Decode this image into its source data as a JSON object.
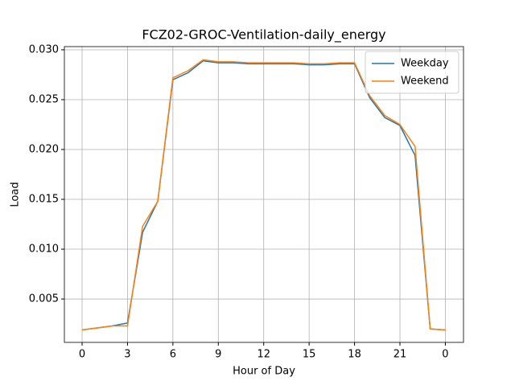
{
  "chart_data": {
    "type": "line",
    "title": "FCZ02-GROC-Ventilation-daily_energy",
    "x_label": "Hour of Day",
    "y_label": "Load",
    "x": [
      0,
      1,
      2,
      3,
      4,
      5,
      6,
      7,
      8,
      9,
      10,
      11,
      12,
      13,
      14,
      15,
      16,
      17,
      18,
      19,
      20,
      21,
      22,
      23,
      24
    ],
    "series": [
      {
        "name": "Weekday",
        "color": "#1f77b4",
        "values": [
          0.0019,
          0.0021,
          0.0023,
          0.0026,
          0.0117,
          0.0148,
          0.027,
          0.0277,
          0.0289,
          0.0287,
          0.0287,
          0.0286,
          0.0286,
          0.0286,
          0.0286,
          0.0285,
          0.0285,
          0.0286,
          0.0286,
          0.0252,
          0.0232,
          0.0224,
          0.0194,
          0.002,
          0.0019
        ]
      },
      {
        "name": "Weekend",
        "color": "#ff7f0e",
        "values": [
          0.0019,
          0.0021,
          0.0023,
          0.0023,
          0.0123,
          0.0148,
          0.0272,
          0.0279,
          0.029,
          0.0288,
          0.0288,
          0.0287,
          0.0287,
          0.0287,
          0.0287,
          0.0286,
          0.0286,
          0.0287,
          0.0287,
          0.0254,
          0.0234,
          0.0225,
          0.0203,
          0.002,
          0.0019
        ]
      }
    ],
    "xlim": [
      -1.17,
      25.2
    ],
    "xticks": [
      0,
      3,
      6,
      9,
      12,
      15,
      18,
      21,
      {
        "value": 24,
        "label": "0"
      }
    ],
    "ylim": [
      0.00065,
      0.03032
    ],
    "yticks": [
      0.005,
      {
        "value": 0.01,
        "label": "0.010"
      },
      0.015,
      {
        "value": 0.02,
        "label": "0.020"
      },
      0.025,
      {
        "value": 0.03,
        "label": "0.030"
      }
    ],
    "grid": true,
    "legend": "upper right"
  }
}
